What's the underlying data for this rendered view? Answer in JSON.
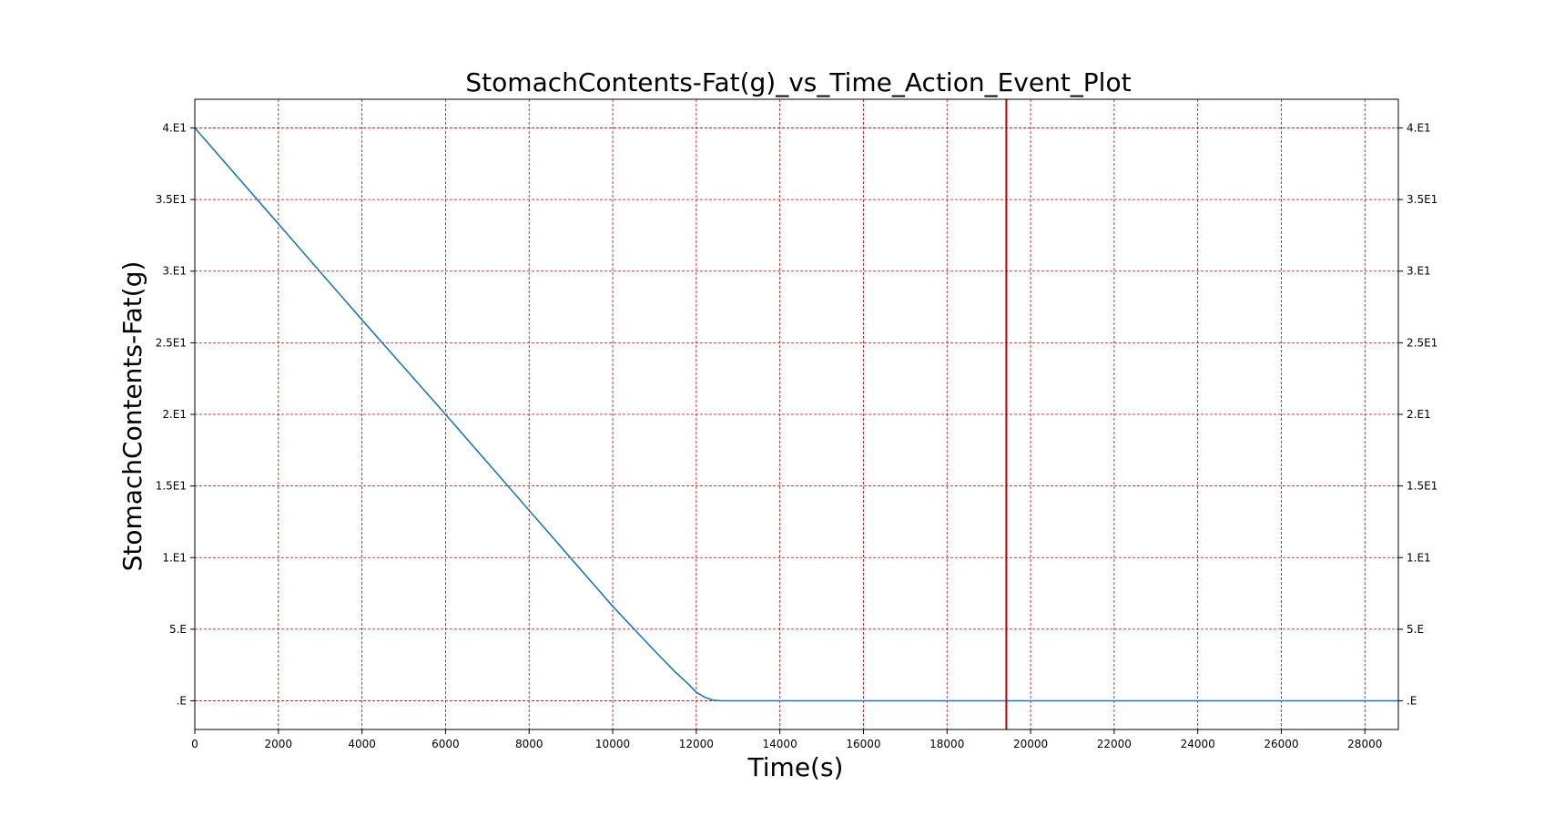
{
  "chart_data": {
    "type": "line",
    "title": "StomachContents-Fat(g)_vs_Time_Action_Event_Plot",
    "xlabel": "Time(s)",
    "ylabel": "StomachContents-Fat(g)",
    "xlim": [
      0,
      28800
    ],
    "ylim": [
      -2,
      42
    ],
    "x_ticks": [
      0,
      2000,
      4000,
      6000,
      8000,
      10000,
      12000,
      14000,
      16000,
      18000,
      20000,
      22000,
      24000,
      26000,
      28000
    ],
    "x_tick_labels": [
      "0",
      "2000",
      "4000",
      "6000",
      "8000",
      "10000",
      "12000",
      "14000",
      "16000",
      "18000",
      "20000",
      "22000",
      "24000",
      "26000",
      "28000"
    ],
    "y_ticks": [
      0,
      5,
      10,
      15,
      20,
      25,
      30,
      35,
      40
    ],
    "y_tick_labels": [
      ".E",
      "5.E",
      "1.E1",
      "1.5E1",
      "2.E1",
      "2.5E1",
      "3.E1",
      "3.5E1",
      "4.E1"
    ],
    "grid": true,
    "series": [
      {
        "color": "#1f77b4",
        "x": [
          0,
          2000,
          4000,
          6000,
          8000,
          10000,
          11000,
          11500,
          11800,
          12000,
          12200,
          12400,
          12600,
          14000,
          20000,
          28800
        ],
        "y": [
          40,
          33.3,
          26.6,
          20,
          13.3,
          6.6,
          3.5,
          2.0,
          1.2,
          0.6,
          0.25,
          0.05,
          0,
          0,
          0,
          0
        ]
      }
    ],
    "event_lines": [
      {
        "x": 19420,
        "color": "#c00000"
      }
    ],
    "colors": {
      "grid": "#c00000",
      "line": "#1f77b4",
      "event": "#c00000"
    }
  }
}
